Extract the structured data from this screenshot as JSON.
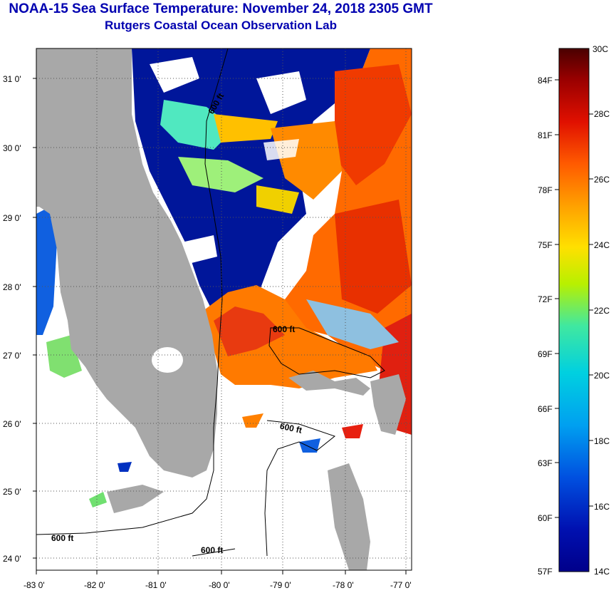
{
  "title": "NOAA-15 Sea Surface Temperature:  November 24, 2018 2305 GMT",
  "subtitle": "Rutgers Coastal Ocean Observation Lab",
  "lat_labels": [
    "31 0'",
    "30 0'",
    "29 0'",
    "28 0'",
    "27 0'",
    "26 0'",
    "25 0'",
    "24 0'"
  ],
  "lon_labels": [
    "-83 0'",
    "-82 0'",
    "-81 0'",
    "-80 0'",
    "-79 0'",
    "-78 0'",
    "-77 0'"
  ],
  "isobath_labels": [
    "600 ft",
    "600 ft",
    "600 ft",
    "600 ft",
    "600 ft"
  ],
  "colorbar": {
    "celsius": [
      "30C",
      "28C",
      "26C",
      "24C",
      "22C",
      "20C",
      "18C",
      "16C",
      "14C"
    ],
    "fahrenheit": [
      "84F",
      "81F",
      "78F",
      "75F",
      "72F",
      "69F",
      "66F",
      "63F",
      "60F",
      "57F"
    ],
    "gradient": [
      "#4a0000",
      "#9a0000",
      "#e01000",
      "#ff5a00",
      "#ffa000",
      "#ffe000",
      "#b8f000",
      "#40e8a0",
      "#00d0e0",
      "#00a0f0",
      "#0050e0",
      "#0010b0",
      "#00008a"
    ]
  },
  "colors": {
    "land": "#a8a8a8",
    "cold": "#00169a",
    "warm": "#ff6a00",
    "hot": "#f02800",
    "title": "#0000b0"
  }
}
